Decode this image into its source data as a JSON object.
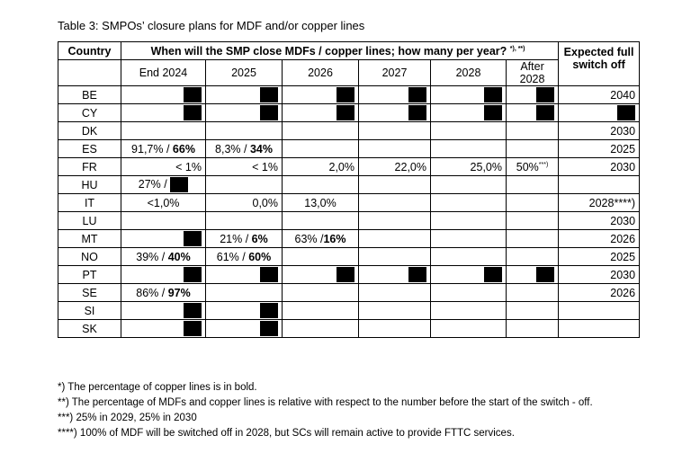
{
  "caption": "Table 3: SMPOs’ closure plans for MDF and/or copper lines",
  "header": {
    "country": "Country",
    "question": "When will the SMP close MDFs / copper lines; how many per year?",
    "question_sup": "*), **)",
    "expected": "Expected full switch off"
  },
  "years": [
    "End 2024",
    "2025",
    "2026",
    "2027",
    "2028",
    "After 2028"
  ],
  "rows": [
    {
      "country": "BE",
      "cells": [
        {
          "redacted": true
        },
        {
          "redacted": true
        },
        {
          "redacted": true
        },
        {
          "redacted": true
        },
        {
          "redacted": true
        },
        {
          "redacted": true
        }
      ],
      "expected": "2040"
    },
    {
      "country": "CY",
      "cells": [
        {
          "redacted": true
        },
        {
          "redacted": true
        },
        {
          "redacted": true
        },
        {
          "redacted": true
        },
        {
          "redacted": true
        },
        {
          "redacted": true
        }
      ],
      "expected_redacted": true
    },
    {
      "country": "DK",
      "cells": [
        {},
        {},
        {},
        {},
        {},
        {}
      ],
      "expected": "2030"
    },
    {
      "country": "ES",
      "cells": [
        {
          "a": "91,7% / ",
          "b": "66%"
        },
        {
          "a": "8,3% / ",
          "b": "34%"
        },
        {},
        {},
        {},
        {}
      ],
      "expected": "2025"
    },
    {
      "country": "FR",
      "cells": [
        {
          "a": "< 1%",
          "align": "right"
        },
        {
          "a": "< 1%",
          "align": "right"
        },
        {
          "a": "2,0%",
          "align": "right"
        },
        {
          "a": "22,0%",
          "align": "right"
        },
        {
          "a": "25,0%",
          "align": "right"
        },
        {
          "a": "50%",
          "sup": "***)"
        }
      ],
      "expected": "2030"
    },
    {
      "country": "HU",
      "cells": [
        {
          "a": "27% / ",
          "redacted_tail": true
        },
        {},
        {},
        {},
        {},
        {}
      ],
      "expected": ""
    },
    {
      "country": "IT",
      "cells": [
        {
          "a": "<1,0%"
        },
        {
          "a": "0,0%",
          "align": "right"
        },
        {
          "a": "13,0%"
        },
        {},
        {},
        {}
      ],
      "expected": "2028****)"
    },
    {
      "country": "LU",
      "cells": [
        {},
        {},
        {},
        {},
        {},
        {}
      ],
      "expected": "2030"
    },
    {
      "country": "MT",
      "cells": [
        {
          "redacted": true
        },
        {
          "a": "21% / ",
          "b": "6%"
        },
        {
          "a": "63% /",
          "b": "16%"
        },
        {},
        {},
        {}
      ],
      "expected": "2026"
    },
    {
      "country": "NO",
      "cells": [
        {
          "a": "39% / ",
          "b": "40%"
        },
        {
          "a": "61% / ",
          "b": "60%"
        },
        {},
        {},
        {},
        {}
      ],
      "expected": "2025"
    },
    {
      "country": "PT",
      "cells": [
        {
          "redacted": true
        },
        {
          "redacted": true
        },
        {
          "redacted": true
        },
        {
          "redacted": true
        },
        {
          "redacted": true
        },
        {
          "redacted": true
        }
      ],
      "expected": "2030"
    },
    {
      "country": "SE",
      "cells": [
        {
          "a": "86% / ",
          "b": "97%"
        },
        {},
        {},
        {},
        {},
        {}
      ],
      "expected": "2026"
    },
    {
      "country": "SI",
      "cells": [
        {
          "redacted": true
        },
        {
          "redacted": true
        },
        {},
        {},
        {},
        {}
      ],
      "expected": ""
    },
    {
      "country": "SK",
      "cells": [
        {
          "redacted": true
        },
        {
          "redacted": true
        },
        {},
        {},
        {},
        {}
      ],
      "expected": ""
    }
  ],
  "notes": [
    "*) The percentage of copper lines is in bold.",
    "**) The percentage of MDFs and copper lines is relative with respect to the number before the start of the switch - off.",
    "***) 25% in 2029, 25% in 2030",
    "****) 100% of MDF will be switched off in 2028, but SCs will remain active to provide FTTC services."
  ]
}
